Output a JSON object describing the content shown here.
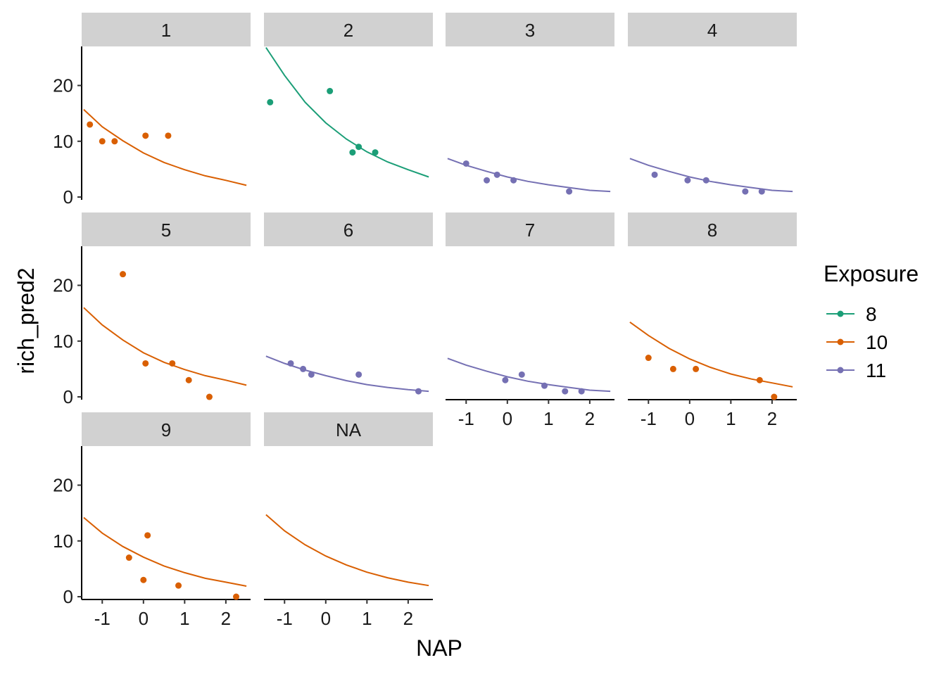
{
  "chart_data": {
    "type": "scatter",
    "xlabel": "NAP",
    "ylabel": "rich_pred2",
    "xlim": [
      -1.5,
      2.6
    ],
    "ylim": [
      -0.5,
      27
    ],
    "x_ticks": [
      -1,
      0,
      1,
      2
    ],
    "y_ticks": [
      0,
      10,
      20
    ],
    "legend": {
      "title": "Exposure",
      "position": "right",
      "entries": [
        {
          "label": "8",
          "color": "#1b9e77"
        },
        {
          "label": "10",
          "color": "#d95f02"
        },
        {
          "label": "11",
          "color": "#7570b3"
        }
      ]
    },
    "panels": [
      {
        "label": "1",
        "exposure": "10",
        "points": [
          [
            -1.3,
            13
          ],
          [
            -1.0,
            10
          ],
          [
            -0.7,
            10
          ],
          [
            0.05,
            11
          ],
          [
            0.6,
            11
          ]
        ],
        "curve": [
          [
            -1.45,
            15.7
          ],
          [
            -1.0,
            12.6
          ],
          [
            -0.5,
            10.1
          ],
          [
            0.0,
            7.9
          ],
          [
            0.5,
            6.2
          ],
          [
            1.0,
            4.9
          ],
          [
            1.5,
            3.8
          ],
          [
            2.0,
            3.0
          ],
          [
            2.5,
            2.1
          ]
        ]
      },
      {
        "label": "2",
        "exposure": "8",
        "points": [
          [
            -1.35,
            17
          ],
          [
            0.1,
            19
          ],
          [
            0.65,
            8
          ],
          [
            0.8,
            9
          ],
          [
            1.2,
            8
          ]
        ],
        "curve": [
          [
            -1.45,
            26.8
          ],
          [
            -1.0,
            21.8
          ],
          [
            -0.5,
            17.0
          ],
          [
            0.0,
            13.3
          ],
          [
            0.5,
            10.4
          ],
          [
            1.0,
            8.1
          ],
          [
            1.5,
            6.3
          ],
          [
            2.0,
            4.9
          ],
          [
            2.5,
            3.6
          ]
        ]
      },
      {
        "label": "3",
        "exposure": "11",
        "points": [
          [
            -1.0,
            6
          ],
          [
            -0.5,
            3
          ],
          [
            -0.25,
            4
          ],
          [
            0.15,
            3
          ],
          [
            1.5,
            1
          ]
        ],
        "curve": [
          [
            -1.45,
            6.9
          ],
          [
            -1.0,
            5.7
          ],
          [
            -0.5,
            4.6
          ],
          [
            0.0,
            3.6
          ],
          [
            0.5,
            2.8
          ],
          [
            1.0,
            2.2
          ],
          [
            1.5,
            1.7
          ],
          [
            2.0,
            1.2
          ],
          [
            2.5,
            1.0
          ]
        ]
      },
      {
        "label": "4",
        "exposure": "11",
        "points": [
          [
            -0.85,
            4
          ],
          [
            -0.05,
            3
          ],
          [
            0.4,
            3
          ],
          [
            1.35,
            1
          ],
          [
            1.75,
            1
          ]
        ],
        "curve": [
          [
            -1.45,
            6.9
          ],
          [
            -1.0,
            5.7
          ],
          [
            -0.5,
            4.6
          ],
          [
            0.0,
            3.6
          ],
          [
            0.5,
            2.8
          ],
          [
            1.0,
            2.2
          ],
          [
            1.5,
            1.7
          ],
          [
            2.0,
            1.2
          ],
          [
            2.5,
            1.0
          ]
        ]
      },
      {
        "label": "5",
        "exposure": "10",
        "points": [
          [
            -0.5,
            22
          ],
          [
            0.05,
            6
          ],
          [
            0.7,
            6
          ],
          [
            1.1,
            3
          ],
          [
            1.6,
            0
          ]
        ],
        "curve": [
          [
            -1.45,
            16.0
          ],
          [
            -1.0,
            12.9
          ],
          [
            -0.5,
            10.2
          ],
          [
            0.0,
            7.9
          ],
          [
            0.5,
            6.2
          ],
          [
            1.0,
            4.9
          ],
          [
            1.5,
            3.8
          ],
          [
            2.0,
            3.0
          ],
          [
            2.5,
            2.1
          ]
        ]
      },
      {
        "label": "6",
        "exposure": "11",
        "points": [
          [
            -0.85,
            6
          ],
          [
            -0.55,
            5
          ],
          [
            -0.35,
            4
          ],
          [
            0.8,
            4
          ],
          [
            2.25,
            1
          ]
        ],
        "curve": [
          [
            -1.45,
            7.3
          ],
          [
            -1.0,
            6.0
          ],
          [
            -0.5,
            4.8
          ],
          [
            0.0,
            3.8
          ],
          [
            0.5,
            2.9
          ],
          [
            1.0,
            2.2
          ],
          [
            1.5,
            1.7
          ],
          [
            2.0,
            1.3
          ],
          [
            2.5,
            1.0
          ]
        ]
      },
      {
        "label": "7",
        "exposure": "11",
        "points": [
          [
            -0.05,
            3
          ],
          [
            0.35,
            4
          ],
          [
            0.9,
            2
          ],
          [
            1.4,
            1
          ],
          [
            1.8,
            1
          ]
        ],
        "curve": [
          [
            -1.45,
            6.9
          ],
          [
            -1.0,
            5.7
          ],
          [
            -0.5,
            4.6
          ],
          [
            0.0,
            3.6
          ],
          [
            0.5,
            2.8
          ],
          [
            1.0,
            2.2
          ],
          [
            1.5,
            1.7
          ],
          [
            2.0,
            1.2
          ],
          [
            2.5,
            1.0
          ]
        ]
      },
      {
        "label": "8",
        "exposure": "10",
        "points": [
          [
            -1.0,
            7
          ],
          [
            -0.4,
            5
          ],
          [
            0.15,
            5
          ],
          [
            1.7,
            3
          ],
          [
            2.05,
            0
          ]
        ],
        "curve": [
          [
            -1.45,
            13.4
          ],
          [
            -1.0,
            11.0
          ],
          [
            -0.5,
            8.7
          ],
          [
            0.0,
            6.8
          ],
          [
            0.5,
            5.3
          ],
          [
            1.0,
            4.1
          ],
          [
            1.5,
            3.2
          ],
          [
            2.0,
            2.5
          ],
          [
            2.5,
            1.8
          ]
        ]
      },
      {
        "label": "9",
        "exposure": "10",
        "points": [
          [
            -0.35,
            7
          ],
          [
            0.1,
            11
          ],
          [
            0.0,
            3
          ],
          [
            0.85,
            2
          ],
          [
            2.25,
            0
          ]
        ],
        "curve": [
          [
            -1.45,
            14.2
          ],
          [
            -1.0,
            11.4
          ],
          [
            -0.5,
            9.0
          ],
          [
            0.0,
            7.1
          ],
          [
            0.5,
            5.5
          ],
          [
            1.0,
            4.3
          ],
          [
            1.5,
            3.3
          ],
          [
            2.0,
            2.6
          ],
          [
            2.5,
            1.9
          ]
        ]
      },
      {
        "label": "NA",
        "exposure": "10",
        "points": [],
        "curve": [
          [
            -1.45,
            14.7
          ],
          [
            -1.0,
            11.8
          ],
          [
            -0.5,
            9.3
          ],
          [
            0.0,
            7.3
          ],
          [
            0.5,
            5.7
          ],
          [
            1.0,
            4.4
          ],
          [
            1.5,
            3.4
          ],
          [
            2.0,
            2.6
          ],
          [
            2.5,
            2.0
          ]
        ]
      }
    ]
  }
}
